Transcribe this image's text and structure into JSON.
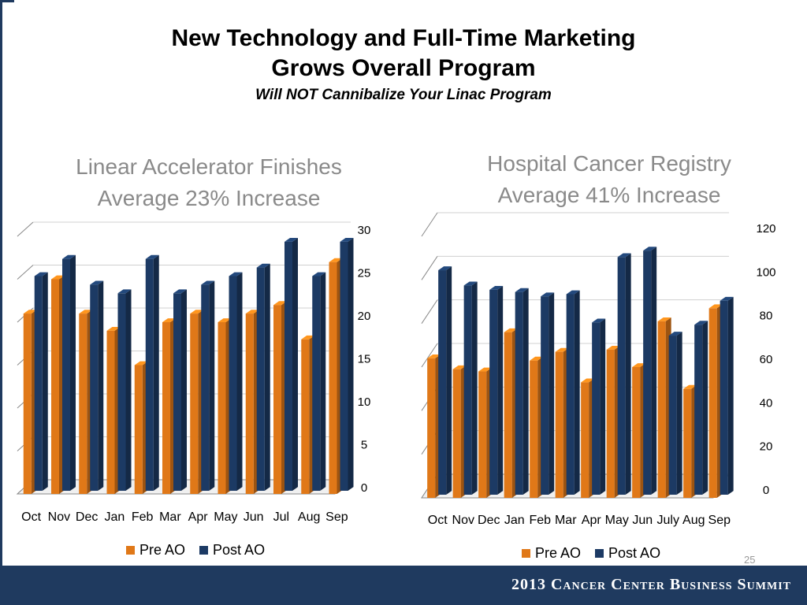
{
  "slide": {
    "title_line1": "New Technology and Full-Time Marketing",
    "title_line2": "Grows Overall Program",
    "subtitle": "Will NOT Cannibalize Your Linac Program",
    "page_number": "25",
    "footer": "2013 Cancer Center Business Summit"
  },
  "colors": {
    "pre": "#e07818",
    "post": "#1c3a64",
    "footer": "#1f3a5f"
  },
  "chart_data": [
    {
      "type": "bar",
      "title_line1": "Linear Accelerator Finishes",
      "title_line2": "Average 23% Increase",
      "categories": [
        "Oct",
        "Nov",
        "Dec",
        "Jan",
        "Feb",
        "Mar",
        "Apr",
        "May",
        "Jun",
        "Jul",
        "Aug",
        "Sep"
      ],
      "series": [
        {
          "name": "Pre AO",
          "values": [
            21,
            25,
            21,
            19,
            15,
            20,
            21,
            20,
            21,
            22,
            18,
            27
          ]
        },
        {
          "name": "Post AO",
          "values": [
            25,
            27,
            24,
            23,
            27,
            23,
            24,
            25,
            26,
            29,
            25,
            29
          ]
        }
      ],
      "yticks": [
        "0",
        "5",
        "10",
        "15",
        "20",
        "25",
        "30"
      ],
      "ylim": [
        0,
        30
      ],
      "legend_position": "bottom",
      "grid": true
    },
    {
      "type": "bar",
      "title_line1": "Hospital Cancer Registry",
      "title_line2": "Average 41% Increase",
      "categories": [
        "Oct",
        "Nov",
        "Dec",
        "Jan",
        "Feb",
        "Mar",
        "Apr",
        "May",
        "Jun",
        "July",
        "Aug",
        "Sep"
      ],
      "series": [
        {
          "name": "Pre AO",
          "values": [
            64,
            59,
            58,
            76,
            63,
            67,
            53,
            68,
            60,
            81,
            50,
            87
          ]
        },
        {
          "name": "Post AO",
          "values": [
            103,
            96,
            94,
            93,
            91,
            92,
            79,
            109,
            112,
            73,
            78,
            89
          ]
        }
      ],
      "yticks": [
        "0",
        "20",
        "40",
        "60",
        "80",
        "100",
        "120"
      ],
      "ylim": [
        0,
        120
      ],
      "legend_position": "bottom",
      "grid": true
    }
  ]
}
